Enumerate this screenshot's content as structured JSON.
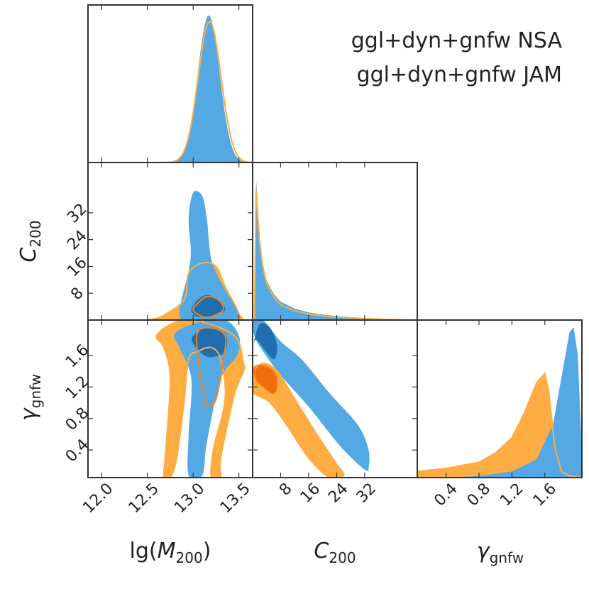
{
  "chart_data": {
    "type": "corner",
    "parameters": [
      {
        "id": "lgM",
        "label_main": "lg(",
        "label_italic": "M",
        "label_sub": "200",
        "label_close": ")",
        "range": [
          11.85,
          13.65
        ],
        "ticks": [
          12.0,
          12.5,
          13.0,
          13.5
        ],
        "tick_labels": [
          "12.0",
          "12.5",
          "13.0",
          "13.5"
        ]
      },
      {
        "id": "c200",
        "label_italic": "C",
        "label_sub": "200",
        "range": [
          0,
          47
        ],
        "ticks": [
          8,
          16,
          24,
          32
        ],
        "tick_labels": [
          "8",
          "16",
          "24",
          "32"
        ]
      },
      {
        "id": "gamma",
        "label_italic": "γ",
        "label_sub": "gnfw",
        "range": [
          0.05,
          2.05
        ],
        "ticks": [
          0.4,
          0.8,
          1.2,
          1.6
        ],
        "tick_labels": [
          "0.4",
          "0.8",
          "1.2",
          "1.6"
        ]
      }
    ],
    "series": [
      {
        "name": "ggl+dyn+gnfw NSA",
        "color": "#1f77b4",
        "fill_color": "#54a9e4",
        "fill_dark": "#1f6fae"
      },
      {
        "name": "ggl+dyn+gnfw JAM",
        "color": "#ff7f0e",
        "fill_color": "#ffad43",
        "fill_dark": "#ee6c0e"
      }
    ],
    "marginals": {
      "lgM": {
        "NSA": {
          "mu": 13.17,
          "sigma": 0.12,
          "peak": 0.96
        },
        "JAM": {
          "mu": 13.18,
          "sigma": 0.125,
          "peak": 0.92
        }
      },
      "c200": {
        "NSA": [
          [
            0.5,
            0
          ],
          [
            1,
            0.92
          ],
          [
            2,
            0.55
          ],
          [
            3,
            0.36
          ],
          [
            4,
            0.26
          ],
          [
            6,
            0.17
          ],
          [
            8,
            0.12
          ],
          [
            12,
            0.075
          ],
          [
            16,
            0.05
          ],
          [
            22,
            0.03
          ],
          [
            30,
            0.015
          ],
          [
            38,
            0.006
          ],
          [
            46,
            0.001
          ]
        ],
        "JAM": [
          [
            0.5,
            0
          ],
          [
            1,
            0.85
          ],
          [
            2,
            0.5
          ],
          [
            3,
            0.34
          ],
          [
            4,
            0.24
          ],
          [
            6,
            0.15
          ],
          [
            8,
            0.1
          ],
          [
            12,
            0.06
          ],
          [
            16,
            0.04
          ],
          [
            22,
            0.022
          ],
          [
            30,
            0.012
          ],
          [
            38,
            0.004
          ],
          [
            46,
            0.0
          ]
        ]
      },
      "gamma": {
        "NSA": [
          [
            0.05,
            0.0
          ],
          [
            0.4,
            0.0
          ],
          [
            0.8,
            0.01
          ],
          [
            1.2,
            0.04
          ],
          [
            1.5,
            0.12
          ],
          [
            1.7,
            0.35
          ],
          [
            1.8,
            0.65
          ],
          [
            1.9,
            0.95
          ],
          [
            1.95,
            0.98
          ],
          [
            2.0,
            0.8
          ],
          [
            2.04,
            0.3
          ],
          [
            2.05,
            0
          ]
        ],
        "JAM": [
          [
            0.05,
            0.04
          ],
          [
            0.4,
            0.06
          ],
          [
            0.8,
            0.1
          ],
          [
            1.0,
            0.16
          ],
          [
            1.2,
            0.26
          ],
          [
            1.35,
            0.42
          ],
          [
            1.5,
            0.62
          ],
          [
            1.6,
            0.68
          ],
          [
            1.65,
            0.55
          ],
          [
            1.72,
            0.2
          ],
          [
            1.8,
            0.04
          ],
          [
            1.9,
            0.01
          ],
          [
            2.05,
            0
          ]
        ]
      }
    },
    "contours": {
      "c200_vs_lgM": {
        "NSA": {
          "outer": [
            [
              13.0,
              38
            ],
            [
              13.1,
              37
            ],
            [
              13.15,
              30
            ],
            [
              13.2,
              18
            ],
            [
              13.33,
              10
            ],
            [
              13.5,
              2
            ],
            [
              13.4,
              0
            ],
            [
              13.0,
              0
            ],
            [
              12.85,
              2
            ],
            [
              12.97,
              18
            ],
            [
              12.95,
              30
            ]
          ],
          "inner": [
            [
              13.05,
              6
            ],
            [
              13.15,
              7.5
            ],
            [
              13.28,
              6
            ],
            [
              13.35,
              3
            ],
            [
              13.2,
              1
            ],
            [
              13.05,
              1
            ],
            [
              12.98,
              3
            ]
          ]
        },
        "JAM": {
          "outer": [
            [
              12.95,
              14
            ],
            [
              13.1,
              17
            ],
            [
              13.25,
              16
            ],
            [
              13.35,
              10
            ],
            [
              13.5,
              2
            ],
            [
              13.45,
              0
            ],
            [
              12.55,
              0
            ],
            [
              12.65,
              1
            ],
            [
              12.9,
              6
            ]
          ],
          "inner": [
            [
              13.05,
              5
            ],
            [
              13.15,
              7
            ],
            [
              13.28,
              6
            ],
            [
              13.33,
              3
            ],
            [
              13.2,
              1
            ],
            [
              13.1,
              1
            ],
            [
              13.0,
              3
            ]
          ]
        }
      },
      "gamma_vs_lgM": {
        "NSA": {
          "outer": [
            [
              12.8,
              1.88
            ],
            [
              13.05,
              2.02
            ],
            [
              13.35,
              2.05
            ],
            [
              13.5,
              1.85
            ],
            [
              13.48,
              1.6
            ],
            [
              13.3,
              1.3
            ],
            [
              13.15,
              0.5
            ],
            [
              13.1,
              0.08
            ],
            [
              12.95,
              0.08
            ],
            [
              12.95,
              0.6
            ],
            [
              12.98,
              1.3
            ],
            [
              12.85,
              1.7
            ]
          ],
          "inner": [
            [
              13.0,
              1.85
            ],
            [
              13.15,
              1.95
            ],
            [
              13.35,
              1.88
            ],
            [
              13.35,
              1.65
            ],
            [
              13.2,
              1.58
            ],
            [
              13.1,
              1.62
            ],
            [
              13.0,
              1.75
            ]
          ]
        },
        "JAM": {
          "outer": [
            [
              12.6,
              1.85
            ],
            [
              12.8,
              2.02
            ],
            [
              13.05,
              2.04
            ],
            [
              13.45,
              1.85
            ],
            [
              13.55,
              1.5
            ],
            [
              13.55,
              1.4
            ],
            [
              13.45,
              1.1
            ],
            [
              13.3,
              0.3
            ],
            [
              13.3,
              0.05
            ],
            [
              13.2,
              0.05
            ],
            [
              13.22,
              0.4
            ],
            [
              13.35,
              1.05
            ],
            [
              13.3,
              1.55
            ],
            [
              13.2,
              1.7
            ],
            [
              13.05,
              1.65
            ],
            [
              12.95,
              1.55
            ],
            [
              12.9,
              1.0
            ],
            [
              12.82,
              0.3
            ],
            [
              12.75,
              0.05
            ],
            [
              12.68,
              0.05
            ],
            [
              12.7,
              0.4
            ],
            [
              12.75,
              1.3
            ],
            [
              12.68,
              1.7
            ]
          ],
          "inner": [
            [
              13.05,
              1.9
            ],
            [
              13.2,
              1.95
            ],
            [
              13.35,
              1.85
            ],
            [
              13.33,
              1.55
            ],
            [
              13.25,
              1.05
            ],
            [
              13.15,
              0.95
            ],
            [
              13.1,
              1.2
            ],
            [
              13.05,
              1.6
            ]
          ]
        }
      },
      "gamma_vs_c200": {
        "NSA": {
          "outer": [
            [
              0.2,
              2.05
            ],
            [
              3,
              2.05
            ],
            [
              8,
              1.78
            ],
            [
              14,
              1.55
            ],
            [
              22,
              1.12
            ],
            [
              30,
              0.72
            ],
            [
              33,
              0.42
            ],
            [
              33.2,
              0.2
            ],
            [
              32,
              0.15
            ],
            [
              25,
              0.45
            ],
            [
              16,
              0.95
            ],
            [
              8,
              1.35
            ],
            [
              3,
              1.65
            ],
            [
              0.5,
              1.85
            ]
          ],
          "inner": [
            [
              0.3,
              1.75
            ],
            [
              2,
              2.0
            ],
            [
              5,
              1.95
            ],
            [
              7,
              1.72
            ],
            [
              6,
              1.55
            ],
            [
              3,
              1.7
            ],
            [
              1,
              1.8
            ]
          ]
        },
        "JAM": {
          "outer": [
            [
              0.2,
              1.38
            ],
            [
              3,
              1.5
            ],
            [
              7,
              1.4
            ],
            [
              12,
              1.05
            ],
            [
              18,
              0.62
            ],
            [
              24,
              0.22
            ],
            [
              26,
              0.08
            ],
            [
              22,
              0.05
            ],
            [
              16,
              0.3
            ],
            [
              10,
              0.7
            ],
            [
              5,
              1.0
            ],
            [
              1,
              1.1
            ],
            [
              0.2,
              1.15
            ]
          ],
          "inner": [
            [
              0.5,
              1.45
            ],
            [
              3,
              1.47
            ],
            [
              6,
              1.4
            ],
            [
              7,
              1.25
            ],
            [
              6,
              1.12
            ],
            [
              3,
              1.2
            ],
            [
              1,
              1.3
            ]
          ]
        }
      }
    }
  }
}
